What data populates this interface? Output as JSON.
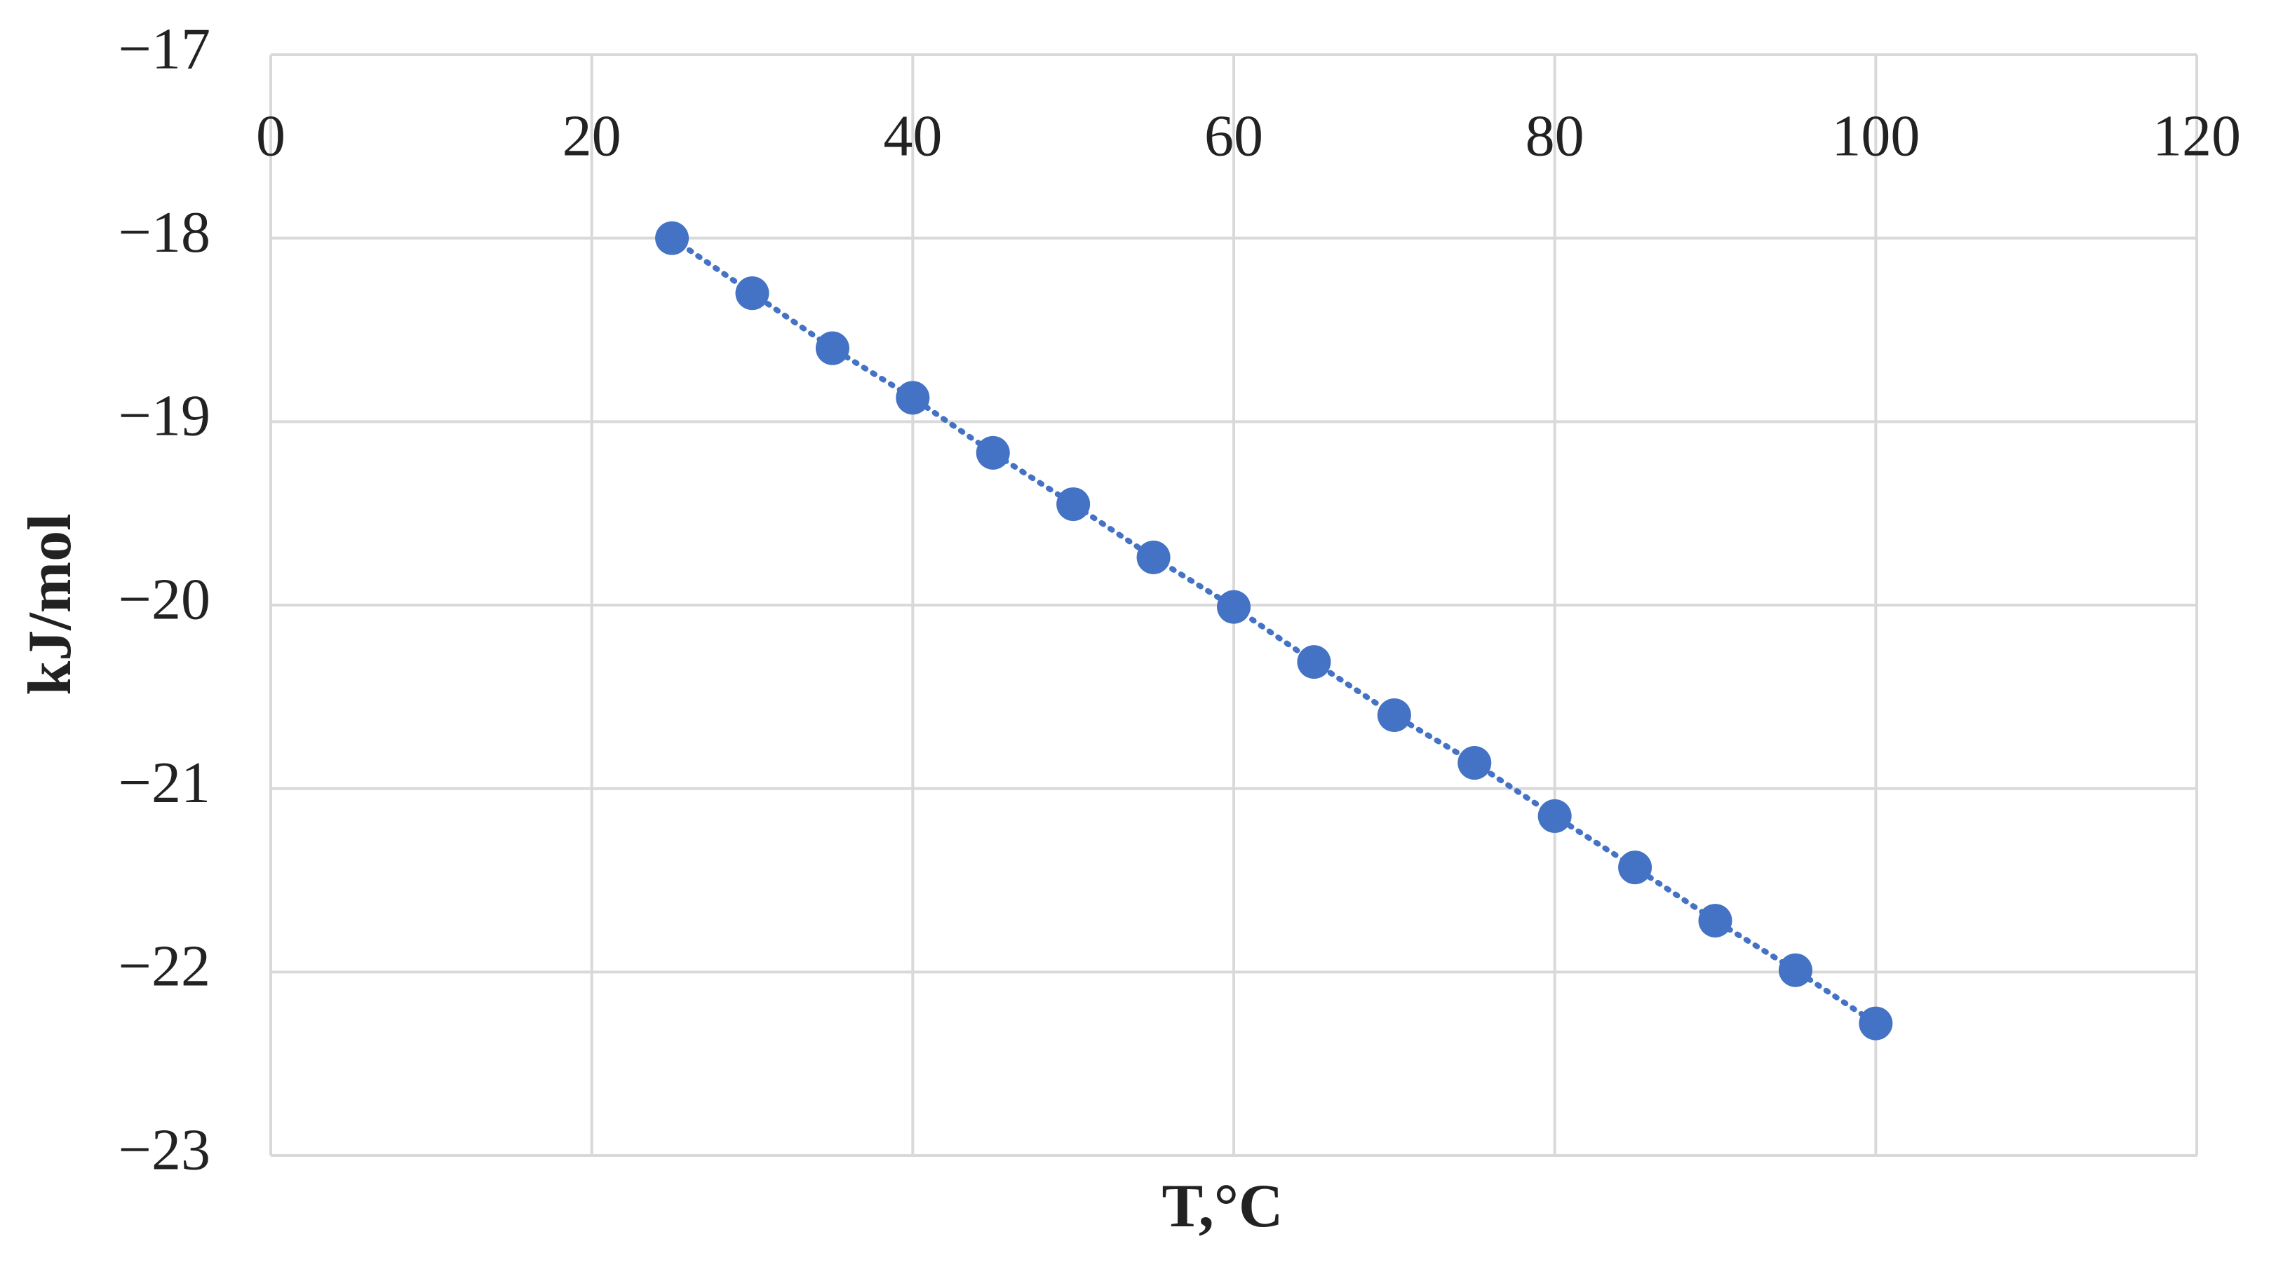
{
  "chart_data": {
    "type": "scatter",
    "x_label": "T,°C",
    "y_label": "kJ/mol",
    "series": [
      {
        "color": "#4472c4",
        "x": [
          25,
          30,
          35,
          40,
          45,
          50,
          55,
          60,
          65,
          70,
          75,
          80,
          85,
          90,
          95,
          100
        ],
        "values": [
          -18.0,
          -18.3,
          -18.6,
          -18.87,
          -19.17,
          -19.45,
          -19.74,
          -20.01,
          -20.31,
          -20.6,
          -20.86,
          -21.15,
          -21.43,
          -21.72,
          -21.99,
          -22.28
        ]
      }
    ],
    "xlim": [
      0,
      120
    ],
    "xticks": [
      0,
      20,
      40,
      60,
      80,
      100,
      120
    ],
    "ylim": [
      -23,
      -17
    ],
    "yticks": [
      {
        "value": -17,
        "label": "−17"
      },
      {
        "value": -18,
        "label": "−18"
      },
      {
        "value": -19,
        "label": "−19"
      },
      {
        "value": -20,
        "label": "−20"
      },
      {
        "value": -21,
        "label": "−21"
      },
      {
        "value": -22,
        "label": "−22"
      },
      {
        "value": -23,
        "label": "−23"
      }
    ],
    "grid": true
  }
}
